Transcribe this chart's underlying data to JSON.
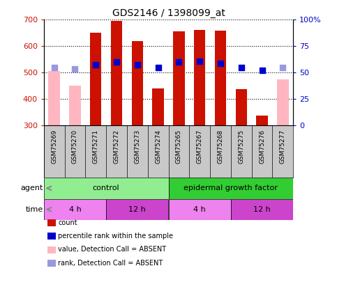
{
  "title": "GDS2146 / 1398099_at",
  "samples": [
    "GSM75269",
    "GSM75270",
    "GSM75271",
    "GSM75272",
    "GSM75273",
    "GSM75274",
    "GSM75265",
    "GSM75267",
    "GSM75268",
    "GSM75275",
    "GSM75276",
    "GSM75277"
  ],
  "counts": [
    null,
    null,
    650,
    695,
    620,
    440,
    655,
    662,
    660,
    437,
    338,
    null
  ],
  "counts_absent": [
    505,
    450,
    null,
    null,
    null,
    null,
    null,
    null,
    null,
    null,
    null,
    474
  ],
  "percentile_ranks": [
    null,
    null,
    530,
    540,
    531,
    520,
    540,
    542,
    535,
    520,
    508,
    null
  ],
  "percentile_ranks_absent": [
    520,
    515,
    null,
    null,
    null,
    null,
    null,
    null,
    null,
    null,
    null,
    520
  ],
  "ylim": [
    300,
    700
  ],
  "yticks": [
    300,
    400,
    500,
    600,
    700
  ],
  "y2ticks_pct": [
    0,
    25,
    50,
    75,
    100
  ],
  "y2labels": [
    "0",
    "25",
    "50",
    "75",
    "100%"
  ],
  "bar_bottom": 300,
  "agent_groups": [
    {
      "label": "control",
      "start": 0,
      "end": 6,
      "color": "#90EE90"
    },
    {
      "label": "epidermal growth factor",
      "start": 6,
      "end": 12,
      "color": "#32CD32"
    }
  ],
  "time_groups": [
    {
      "label": "4 h",
      "start": 0,
      "end": 3,
      "color": "#EE82EE"
    },
    {
      "label": "12 h",
      "start": 3,
      "end": 6,
      "color": "#CC44CC"
    },
    {
      "label": "4 h",
      "start": 6,
      "end": 9,
      "color": "#EE82EE"
    },
    {
      "label": "12 h",
      "start": 9,
      "end": 12,
      "color": "#CC44CC"
    }
  ],
  "bar_color_present": "#CC1100",
  "bar_color_absent": "#FFB6C1",
  "rank_color_present": "#0000CC",
  "rank_color_absent": "#9999DD",
  "bar_width": 0.55,
  "rank_marker_size": 40,
  "tick_color_left": "#CC1100",
  "tick_color_right": "#0000CC",
  "background_color": "#FFFFFF",
  "label_area_color": "#C8C8C8",
  "legend_items": [
    {
      "label": "count",
      "color": "#CC1100"
    },
    {
      "label": "percentile rank within the sample",
      "color": "#0000CC"
    },
    {
      "label": "value, Detection Call = ABSENT",
      "color": "#FFB6C1"
    },
    {
      "label": "rank, Detection Call = ABSENT",
      "color": "#9999DD"
    }
  ]
}
